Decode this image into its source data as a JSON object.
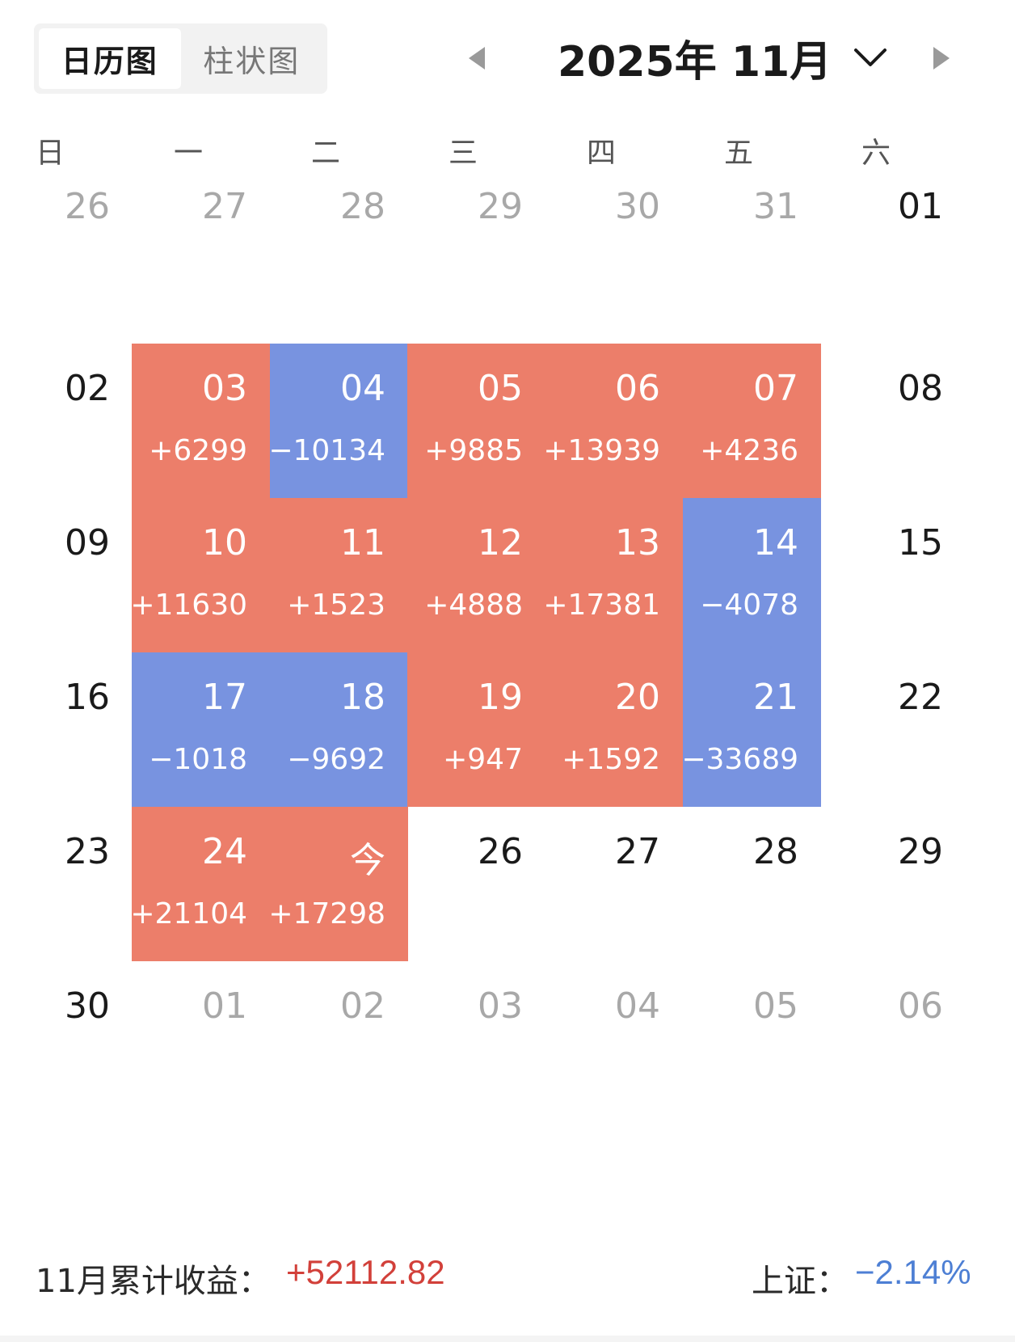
{
  "view_tabs": [
    {
      "label": "日历图",
      "active": true
    },
    {
      "label": "柱状图",
      "active": false
    }
  ],
  "month_title": "2025年 11月",
  "weekdays": [
    "日",
    "一",
    "二",
    "三",
    "四",
    "五",
    "六"
  ],
  "colors": {
    "gain": "#ec7e6a",
    "loss": "#7893e0",
    "positive_text": "#d2403a",
    "negative_text": "#4d7fd4"
  },
  "weeks": [
    [
      {
        "day": "26",
        "muted": true
      },
      {
        "day": "27",
        "muted": true
      },
      {
        "day": "28",
        "muted": true
      },
      {
        "day": "29",
        "muted": true
      },
      {
        "day": "30",
        "muted": true
      },
      {
        "day": "31",
        "muted": true
      },
      {
        "day": "01"
      }
    ],
    [
      {
        "day": "02"
      },
      {
        "day": "03",
        "pnl": "+6299",
        "status": "gain"
      },
      {
        "day": "04",
        "pnl": "−10134",
        "status": "loss"
      },
      {
        "day": "05",
        "pnl": "+9885",
        "status": "gain"
      },
      {
        "day": "06",
        "pnl": "+13939",
        "status": "gain"
      },
      {
        "day": "07",
        "pnl": "+4236",
        "status": "gain"
      },
      {
        "day": "08"
      }
    ],
    [
      {
        "day": "09"
      },
      {
        "day": "10",
        "pnl": "+11630",
        "status": "gain"
      },
      {
        "day": "11",
        "pnl": "+1523",
        "status": "gain"
      },
      {
        "day": "12",
        "pnl": "+4888",
        "status": "gain"
      },
      {
        "day": "13",
        "pnl": "+17381",
        "status": "gain"
      },
      {
        "day": "14",
        "pnl": "−4078",
        "status": "loss"
      },
      {
        "day": "15"
      }
    ],
    [
      {
        "day": "16"
      },
      {
        "day": "17",
        "pnl": "−1018",
        "status": "loss"
      },
      {
        "day": "18",
        "pnl": "−9692",
        "status": "loss"
      },
      {
        "day": "19",
        "pnl": "+947",
        "status": "gain"
      },
      {
        "day": "20",
        "pnl": "+1592",
        "status": "gain"
      },
      {
        "day": "21",
        "pnl": "−33689",
        "status": "loss"
      },
      {
        "day": "22"
      }
    ],
    [
      {
        "day": "23"
      },
      {
        "day": "24",
        "pnl": "+21104",
        "status": "gain"
      },
      {
        "day": "今",
        "pnl": "+17298",
        "status": "gain"
      },
      {
        "day": "26"
      },
      {
        "day": "27"
      },
      {
        "day": "28"
      },
      {
        "day": "29"
      }
    ],
    [
      {
        "day": "30"
      },
      {
        "day": "01",
        "muted": true
      },
      {
        "day": "02",
        "muted": true
      },
      {
        "day": "03",
        "muted": true
      },
      {
        "day": "04",
        "muted": true
      },
      {
        "day": "05",
        "muted": true
      },
      {
        "day": "06",
        "muted": true
      }
    ]
  ],
  "footer": {
    "cumulative_label": "11月累计收益：",
    "cumulative_value": "+52112.82",
    "index_label": "上证：",
    "index_value": "−2.14%"
  }
}
